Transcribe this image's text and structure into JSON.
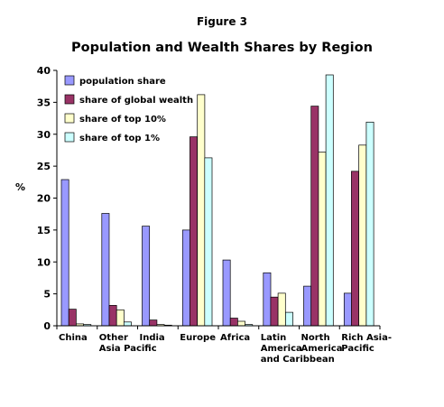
{
  "figure_label": "Figure 3",
  "chart_data": {
    "type": "bar",
    "title": "Population and Wealth Shares by Region",
    "ylabel": "%",
    "xlabel": "",
    "ylim": [
      0,
      40
    ],
    "yticks": [
      0,
      5,
      10,
      15,
      20,
      25,
      30,
      35,
      40
    ],
    "grid": false,
    "legend_position": "top-left",
    "categories": [
      [
        "China"
      ],
      [
        "Other",
        "Asia Pacific"
      ],
      [
        "India"
      ],
      [
        "Europe"
      ],
      [
        "Africa"
      ],
      [
        "Latin",
        "America",
        "and Caribbean"
      ],
      [
        "North",
        "America"
      ],
      [
        "Rich Asia-",
        "Pacific"
      ]
    ],
    "series": [
      {
        "name": "population share",
        "color": "#9999ff",
        "values": [
          22.9,
          17.6,
          15.6,
          15.0,
          10.3,
          8.3,
          6.2,
          5.1
        ]
      },
      {
        "name": "share of global wealth",
        "color": "#993366",
        "values": [
          2.6,
          3.2,
          0.9,
          29.6,
          1.2,
          4.5,
          34.4,
          24.2
        ]
      },
      {
        "name": "share of top 10%",
        "color": "#ffffcc",
        "values": [
          0.3,
          2.5,
          0.2,
          36.2,
          0.7,
          5.1,
          27.2,
          28.3
        ]
      },
      {
        "name": "share of top 1%",
        "color": "#ccffff",
        "values": [
          0.2,
          0.6,
          0.1,
          26.3,
          0.2,
          2.1,
          39.3,
          31.9
        ]
      }
    ]
  }
}
